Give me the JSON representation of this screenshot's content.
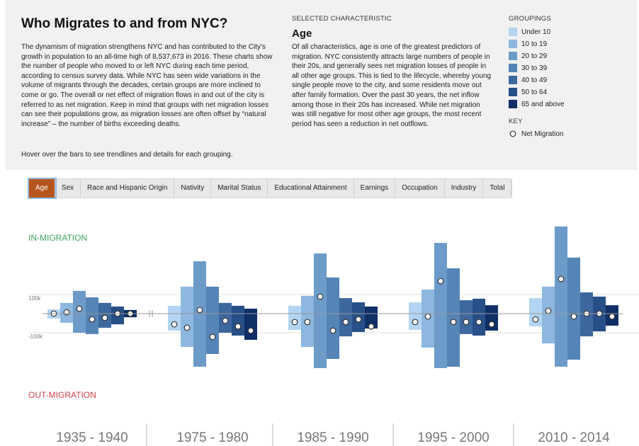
{
  "header": {
    "title": "Who Migrates to and from NYC?",
    "intro": "The dynamism of migration strengthens NYC and has contributed to the City’s growth in population to an all-time high of 8,537,673 in 2016. These charts show the number of people who moved to or left NYC during each time period, according to census survey data. While NYC has seen wide variations in the volume of migrants through the decades, certain groups are more inclined to come or go. The overall or net effect of migration flows in and out of the city is referred to as net migration. Keep in mind that groups with net migration losses can see their populations grow, as migration losses are often offset by “natural increase” – the number of births exceeding deaths.",
    "hint": "Hover over the bars to see trendlines and details for each grouping."
  },
  "selected": {
    "label": "SELECTED CHARACTERISTIC",
    "name": "Age",
    "text": "Of all characteristics, age is one of the greatest predictors of migration. NYC consistently attracts large numbers of people in their 20s, and generally sees net migration losses of people in all other age groups. This is tied to the lifecycle, whereby young single people move to the city, and some residents move out after family formation. Over the past 30 years, the net inflow among those in their 20s has increased. While net migration was still negative for most other age groups, the most recent period has seen a reduction in net outflows."
  },
  "legend": {
    "title": "GROUPINGS",
    "key_title": "KEY",
    "net_label": "Net Migration"
  },
  "tabs": [
    "Age",
    "Sex",
    "Race and Hispanic Origin",
    "Nativity",
    "Marital Status",
    "Educational Attainment",
    "Earnings",
    "Occupation",
    "Industry",
    "Total"
  ],
  "chart_data": {
    "type": "diverging-bar",
    "in_label": "IN-MIGRATION",
    "out_label": "OUT-MIGRATION",
    "categories": [
      "1935 - 1940",
      "1975 - 1980",
      "1985 - 1990",
      "1995 - 2000",
      "2010 - 2014"
    ],
    "ylim": [
      -300000,
      500000
    ],
    "yticks": [
      {
        "value": 100000,
        "label": "100k"
      },
      {
        "value": -100000,
        "label": "-100k"
      }
    ],
    "grid": true,
    "series": [
      {
        "name": "Under 10",
        "color": "#b3d5f3",
        "in_values": [
          22000,
          41000,
          41000,
          59000,
          81000
        ],
        "out_values": [
          -26000,
          -89000,
          -85000,
          -85000,
          -67000
        ],
        "net_values": [
          0,
          -56000,
          -44000,
          -44000,
          -30000
        ]
      },
      {
        "name": "10 to 19",
        "color": "#8db7df",
        "in_values": [
          56000,
          141000,
          93000,
          126000,
          141000
        ],
        "out_values": [
          -48000,
          -174000,
          -174000,
          -178000,
          -156000
        ],
        "net_values": [
          7000,
          -74000,
          -44000,
          -15000,
          15000
        ]
      },
      {
        "name": "20 to 29",
        "color": "#6c9bc9",
        "in_values": [
          119000,
          274000,
          315000,
          370000,
          456000
        ],
        "out_values": [
          -100000,
          -278000,
          -285000,
          -285000,
          -278000
        ],
        "net_values": [
          26000,
          19000,
          89000,
          170000,
          181000
        ]
      },
      {
        "name": "30 to 39",
        "color": "#5584b6",
        "in_values": [
          85000,
          141000,
          189000,
          237000,
          293000
        ],
        "out_values": [
          -107000,
          -211000,
          -237000,
          -278000,
          -241000
        ],
        "net_values": [
          -30000,
          -122000,
          -89000,
          -44000,
          -15000
        ]
      },
      {
        "name": "40 to 49",
        "color": "#3d689e",
        "in_values": [
          56000,
          56000,
          81000,
          70000,
          111000
        ],
        "out_values": [
          -74000,
          -100000,
          -119000,
          -107000,
          -119000
        ],
        "net_values": [
          -22000,
          -37000,
          -44000,
          -44000,
          0
        ]
      },
      {
        "name": "50 to 64",
        "color": "#274f88",
        "in_values": [
          37000,
          41000,
          59000,
          78000,
          89000
        ],
        "out_values": [
          -56000,
          -115000,
          -96000,
          -115000,
          -93000
        ],
        "net_values": [
          0,
          -67000,
          -30000,
          -44000,
          0
        ]
      },
      {
        "name": "65 and above",
        "color": "#0f2f67",
        "in_values": [
          19000,
          26000,
          37000,
          44000,
          44000
        ],
        "out_values": [
          -19000,
          -137000,
          -78000,
          -89000,
          -63000
        ],
        "net_values": [
          0,
          -89000,
          -67000,
          -56000,
          -15000
        ]
      }
    ]
  }
}
